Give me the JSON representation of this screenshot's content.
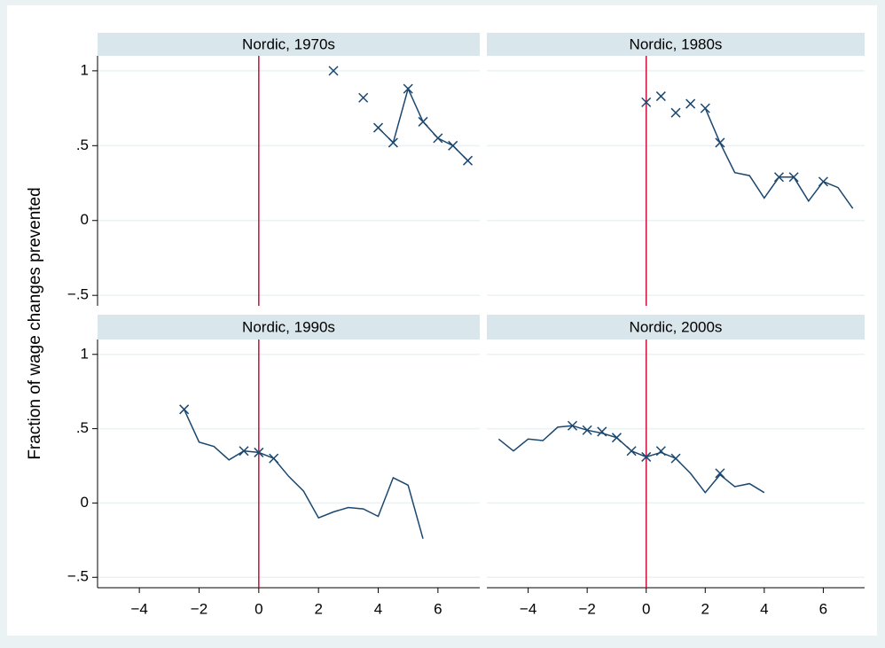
{
  "ylabel": "Fraction of wage changes prevented",
  "axes": {
    "xlim": [
      -5.4,
      7.4
    ],
    "xticks": [
      {
        "value": -4,
        "label": "−4"
      },
      {
        "value": -2,
        "label": "−2"
      },
      0,
      2,
      4,
      6
    ],
    "ylim": [
      -0.57,
      1.1
    ],
    "yticks": [
      {
        "value": -0.5,
        "label": "−.5"
      },
      0,
      {
        "value": 0.5,
        "label": ".5"
      },
      1
    ],
    "grid": true,
    "vline": 0,
    "vline_color": "#c0143c",
    "color": "#1a476f"
  },
  "chart_data": [
    {
      "type": "line",
      "title": "Nordic, 1970s",
      "x": [
        2.5,
        3,
        3.5,
        4,
        4.5,
        5,
        5.5,
        6,
        6.5,
        7
      ],
      "series": [
        {
          "style": "line",
          "values": [
            null,
            null,
            null,
            0.62,
            0.52,
            0.88,
            0.66,
            0.55,
            0.5,
            0.4
          ]
        },
        {
          "style": "markers",
          "values": [
            1.0,
            null,
            0.82,
            0.62,
            0.52,
            0.88,
            0.66,
            0.55,
            0.5,
            0.4
          ]
        }
      ]
    },
    {
      "type": "line",
      "title": "Nordic, 1980s",
      "x": [
        0,
        0.5,
        1,
        1.5,
        2,
        2.5,
        3,
        3.5,
        4,
        4.5,
        5,
        5.5,
        6,
        6.5,
        7
      ],
      "series": [
        {
          "style": "line",
          "values": [
            null,
            null,
            null,
            null,
            0.75,
            0.52,
            0.32,
            0.3,
            0.15,
            0.29,
            0.29,
            0.13,
            0.26,
            0.22,
            0.08
          ]
        },
        {
          "style": "markers",
          "values": [
            0.79,
            0.83,
            0.72,
            0.78,
            0.75,
            0.52,
            null,
            null,
            null,
            0.29,
            0.29,
            null,
            0.26,
            null,
            null
          ]
        }
      ]
    },
    {
      "type": "line",
      "title": "Nordic, 1990s",
      "x": [
        -2.5,
        -2,
        -1.5,
        -1,
        -0.5,
        0,
        0.5,
        1,
        1.5,
        2,
        2.5,
        3,
        3.5,
        4,
        4.5,
        5,
        5.5
      ],
      "series": [
        {
          "style": "line",
          "values": [
            0.63,
            0.41,
            0.38,
            0.29,
            0.35,
            0.34,
            0.3,
            0.18,
            0.08,
            -0.1,
            -0.06,
            -0.03,
            -0.04,
            -0.09,
            0.17,
            0.12,
            -0.24
          ]
        },
        {
          "style": "markers",
          "values": [
            0.63,
            null,
            null,
            null,
            0.35,
            0.34,
            0.3,
            null,
            null,
            null,
            null,
            null,
            null,
            null,
            null,
            null,
            null
          ]
        }
      ]
    },
    {
      "type": "line",
      "title": "Nordic, 2000s",
      "x": [
        -5,
        -4.5,
        -4,
        -3.5,
        -3,
        -2.5,
        -2,
        -1.5,
        -1,
        -0.5,
        0,
        0.5,
        1,
        1.5,
        2,
        2.5,
        3,
        3.5,
        4
      ],
      "series": [
        {
          "style": "line",
          "values": [
            0.43,
            0.35,
            0.43,
            0.42,
            0.51,
            0.52,
            0.49,
            0.47,
            0.44,
            0.35,
            0.31,
            0.34,
            0.3,
            0.2,
            0.07,
            0.19,
            0.11,
            0.13,
            0.07
          ]
        },
        {
          "style": "markers",
          "values": [
            null,
            null,
            null,
            null,
            null,
            0.52,
            0.49,
            0.48,
            0.44,
            0.35,
            0.31,
            0.35,
            0.3,
            null,
            null,
            0.2,
            null,
            null,
            null
          ]
        }
      ]
    }
  ]
}
